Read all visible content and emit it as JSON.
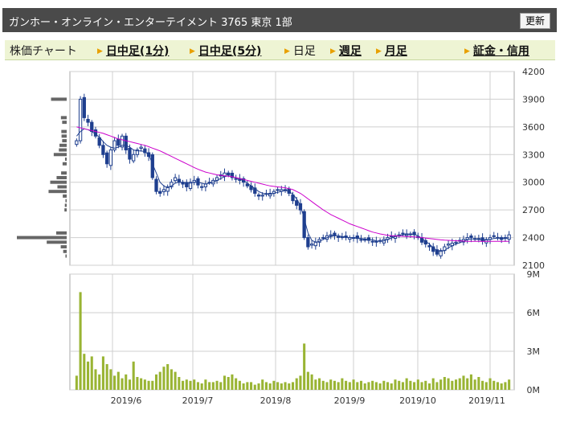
{
  "header": {
    "title": "ガンホー・オンライン・エンターテイメント 3765 東京 1部",
    "refresh_label": "更新"
  },
  "nav": {
    "label": "株価チャート",
    "items": [
      {
        "label": "日中足(1分)",
        "active": false
      },
      {
        "label": "日中足(5分)",
        "active": false
      },
      {
        "label": "日足",
        "active": true
      },
      {
        "label": "週足",
        "active": false
      },
      {
        "label": "月足",
        "active": false
      },
      {
        "label": "証金・信用",
        "active": false
      }
    ]
  },
  "colors": {
    "candle_up": "#ffffff",
    "candle_down": "#1f3f8f",
    "ma_short": "#1f3f8f",
    "ma_long": "#cc00cc",
    "volume_bar": "#99b433",
    "volume_profile": "#666666",
    "grid": "#cfcfcf"
  },
  "chart_data": [
    {
      "type": "candlestick",
      "title": "",
      "ylim": [
        2100,
        4200
      ],
      "y_ticks": [
        "4200",
        "3900",
        "3600",
        "3300",
        "3000",
        "2700",
        "2400",
        "2100"
      ],
      "x_ticks": [
        "2019/6",
        "2019/7",
        "2019/8",
        "2019/9",
        "2019/10",
        "2019/11"
      ],
      "close": [
        3450,
        3900,
        3700,
        3650,
        3550,
        3500,
        3400,
        3300,
        3200,
        3350,
        3450,
        3400,
        3500,
        3350,
        3250,
        3300,
        3350,
        3380,
        3320,
        3280,
        3050,
        2900,
        2880,
        2920,
        2950,
        3000,
        3050,
        3000,
        2980,
        2950,
        3000,
        3020,
        2970,
        2950,
        2980,
        3000,
        3020,
        3050,
        3080,
        3100,
        3080,
        3050,
        3040,
        3020,
        3000,
        2960,
        2920,
        2880,
        2850,
        2860,
        2870,
        2880,
        2900,
        2920,
        2920,
        2910,
        2880,
        2800,
        2750,
        2700,
        2400,
        2300,
        2330,
        2350,
        2380,
        2400,
        2420,
        2430,
        2420,
        2410,
        2400,
        2400,
        2400,
        2400,
        2390,
        2380,
        2380,
        2370,
        2360,
        2350,
        2360,
        2380,
        2400,
        2410,
        2420,
        2430,
        2440,
        2440,
        2440,
        2430,
        2400,
        2350,
        2330,
        2300,
        2250,
        2220,
        2260,
        2300,
        2330,
        2340,
        2350,
        2370,
        2380,
        2400,
        2400,
        2390,
        2380,
        2360,
        2380,
        2400,
        2420,
        2400,
        2380,
        2400,
        2430
      ],
      "series": [
        {
          "name": "",
          "values": [
            3500,
            3550,
            3580,
            3570,
            3550,
            3520,
            3490,
            3440,
            3400,
            3380,
            3370,
            3380,
            3400,
            3400,
            3380,
            3350,
            3340,
            3340,
            3330,
            3300,
            3200,
            3100,
            3000,
            2960,
            2940,
            2960,
            2990,
            3000,
            3000,
            2990,
            2990,
            3000,
            3000,
            2990,
            2980,
            2990,
            3000,
            3020,
            3040,
            3060,
            3070,
            3060,
            3050,
            3040,
            3020,
            2990,
            2960,
            2930,
            2900,
            2880,
            2870,
            2870,
            2880,
            2890,
            2900,
            2910,
            2900,
            2870,
            2820,
            2750,
            2600,
            2450,
            2370,
            2350,
            2360,
            2380,
            2400,
            2410,
            2420,
            2420,
            2410,
            2405,
            2400,
            2400,
            2395,
            2390,
            2385,
            2380,
            2375,
            2365,
            2360,
            2365,
            2380,
            2395,
            2410,
            2420,
            2430,
            2435,
            2440,
            2435,
            2420,
            2390,
            2360,
            2330,
            2290,
            2260,
            2250,
            2260,
            2290,
            2310,
            2330,
            2345,
            2360,
            2380,
            2385,
            2385,
            2380,
            2375,
            2375,
            2380,
            2390,
            2395,
            2390,
            2390,
            2400
          ]
        },
        {
          "name": "",
          "values": [
            3600,
            3590,
            3580,
            3570,
            3560,
            3550,
            3540,
            3530,
            3515,
            3500,
            3485,
            3470,
            3460,
            3450,
            3440,
            3430,
            3420,
            3410,
            3400,
            3385,
            3370,
            3355,
            3340,
            3320,
            3300,
            3280,
            3260,
            3240,
            3220,
            3200,
            3180,
            3160,
            3140,
            3125,
            3110,
            3100,
            3090,
            3080,
            3075,
            3070,
            3065,
            3060,
            3050,
            3040,
            3030,
            3020,
            3010,
            3000,
            2990,
            2980,
            2970,
            2960,
            2955,
            2950,
            2945,
            2940,
            2930,
            2920,
            2900,
            2880,
            2850,
            2820,
            2790,
            2760,
            2730,
            2700,
            2675,
            2650,
            2630,
            2610,
            2590,
            2570,
            2550,
            2535,
            2520,
            2505,
            2490,
            2475,
            2460,
            2450,
            2440,
            2432,
            2425,
            2420,
            2418,
            2416,
            2414,
            2412,
            2410,
            2408,
            2405,
            2400,
            2395,
            2390,
            2385,
            2380,
            2375,
            2372,
            2370,
            2368,
            2366,
            2364,
            2362,
            2360,
            2360,
            2360,
            2360,
            2360,
            2360,
            2360,
            2360,
            2360,
            2360,
            2360,
            2360
          ]
        }
      ]
    },
    {
      "type": "bar",
      "title": "",
      "ylim": [
        0,
        9
      ],
      "y_ticks": [
        "9M",
        "6M",
        "3M",
        "0M"
      ],
      "x_ticks": [
        "2019/6",
        "2019/7",
        "2019/8",
        "2019/9",
        "2019/10",
        "2019/11"
      ],
      "values": [
        1.1,
        7.6,
        2.8,
        2.2,
        2.6,
        1.6,
        1.2,
        2.6,
        2.0,
        1.6,
        1.1,
        1.4,
        0.9,
        1.2,
        0.8,
        2.2,
        1.0,
        0.9,
        0.8,
        0.7,
        0.7,
        1.2,
        1.4,
        1.8,
        2.0,
        1.6,
        1.4,
        1.0,
        0.7,
        0.8,
        0.7,
        0.8,
        0.6,
        0.5,
        0.8,
        0.6,
        0.6,
        0.7,
        0.6,
        1.1,
        1.0,
        1.2,
        0.9,
        0.7,
        0.5,
        0.6,
        0.6,
        0.4,
        0.5,
        0.8,
        0.6,
        0.5,
        0.7,
        0.6,
        0.5,
        0.6,
        0.5,
        0.6,
        0.9,
        1.1,
        3.6,
        1.4,
        1.2,
        0.8,
        0.9,
        0.7,
        0.6,
        0.8,
        0.7,
        0.6,
        0.9,
        0.7,
        0.6,
        0.8,
        0.6,
        0.7,
        0.5,
        0.6,
        0.7,
        0.6,
        0.5,
        0.7,
        0.6,
        0.5,
        0.8,
        0.7,
        0.6,
        0.9,
        0.7,
        0.6,
        0.8,
        0.6,
        0.7,
        0.5,
        0.9,
        0.6,
        0.8,
        1.0,
        0.9,
        0.7,
        0.8,
        0.9,
        1.1,
        0.9,
        1.2,
        0.8,
        1.0,
        0.7,
        0.6,
        0.9,
        0.7,
        0.6,
        0.5,
        0.6,
        0.8
      ]
    }
  ]
}
